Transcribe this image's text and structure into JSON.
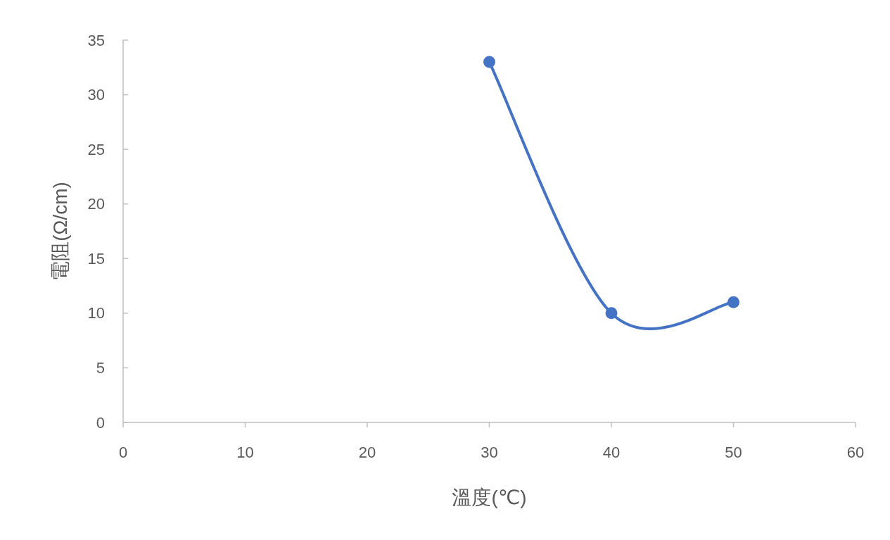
{
  "chart_data": {
    "type": "line",
    "xlabel": "溫度(℃)",
    "ylabel": "電阻(Ω/cm)",
    "x": [
      30,
      40,
      50
    ],
    "series": [
      {
        "color": "#4472c4",
        "values": [
          33,
          10,
          11
        ]
      }
    ],
    "xlim": [
      0,
      60
    ],
    "ylim": [
      0,
      35
    ],
    "xticks": [
      0,
      10,
      20,
      30,
      40,
      50,
      60
    ],
    "yticks": [
      0,
      5,
      10,
      15,
      20,
      25,
      30,
      35
    ],
    "marker": "circle",
    "line_style": "solid"
  }
}
